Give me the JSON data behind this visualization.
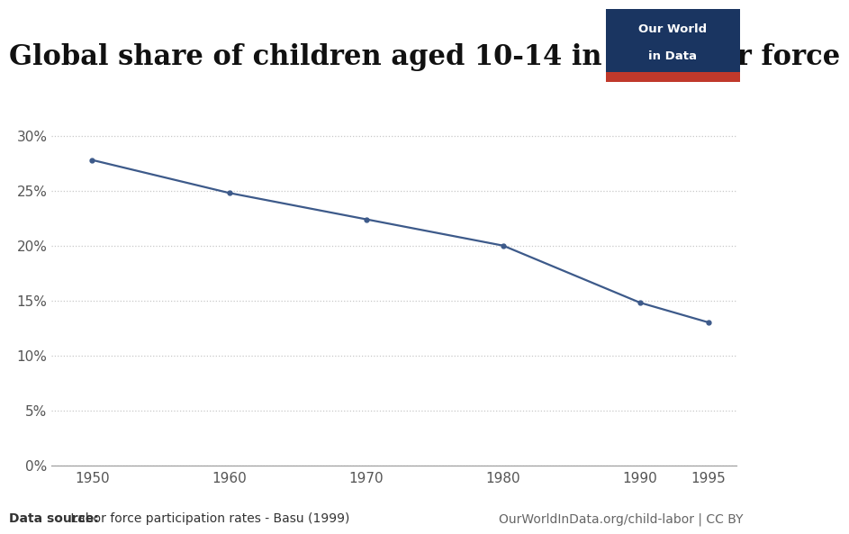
{
  "title": "Global share of children aged 10-14 in the labor force",
  "years": [
    1950,
    1960,
    1970,
    1980,
    1990,
    1995
  ],
  "values": [
    0.278,
    0.248,
    0.224,
    0.2,
    0.148,
    0.13
  ],
  "line_color": "#3d5a8a",
  "marker_color": "#3d5a8a",
  "background_color": "#ffffff",
  "grid_color": "#c8c8c8",
  "xlim": [
    1947,
    1997
  ],
  "ylim": [
    0,
    0.32
  ],
  "yticks": [
    0.0,
    0.05,
    0.1,
    0.15,
    0.2,
    0.25,
    0.3
  ],
  "xticks": [
    1950,
    1960,
    1970,
    1980,
    1990,
    1995
  ],
  "datasource_bold": "Data source:",
  "datasource_rest": " Labor force participation rates - Basu (1999)",
  "url_text": "OurWorldInData.org/child-labor | CC BY",
  "owid_box_bg": "#1a3561",
  "owid_box_red": "#c0392b",
  "owid_text_line1": "Our World",
  "owid_text_line2": "in Data",
  "title_fontsize": 22,
  "tick_fontsize": 11,
  "footer_fontsize": 10
}
